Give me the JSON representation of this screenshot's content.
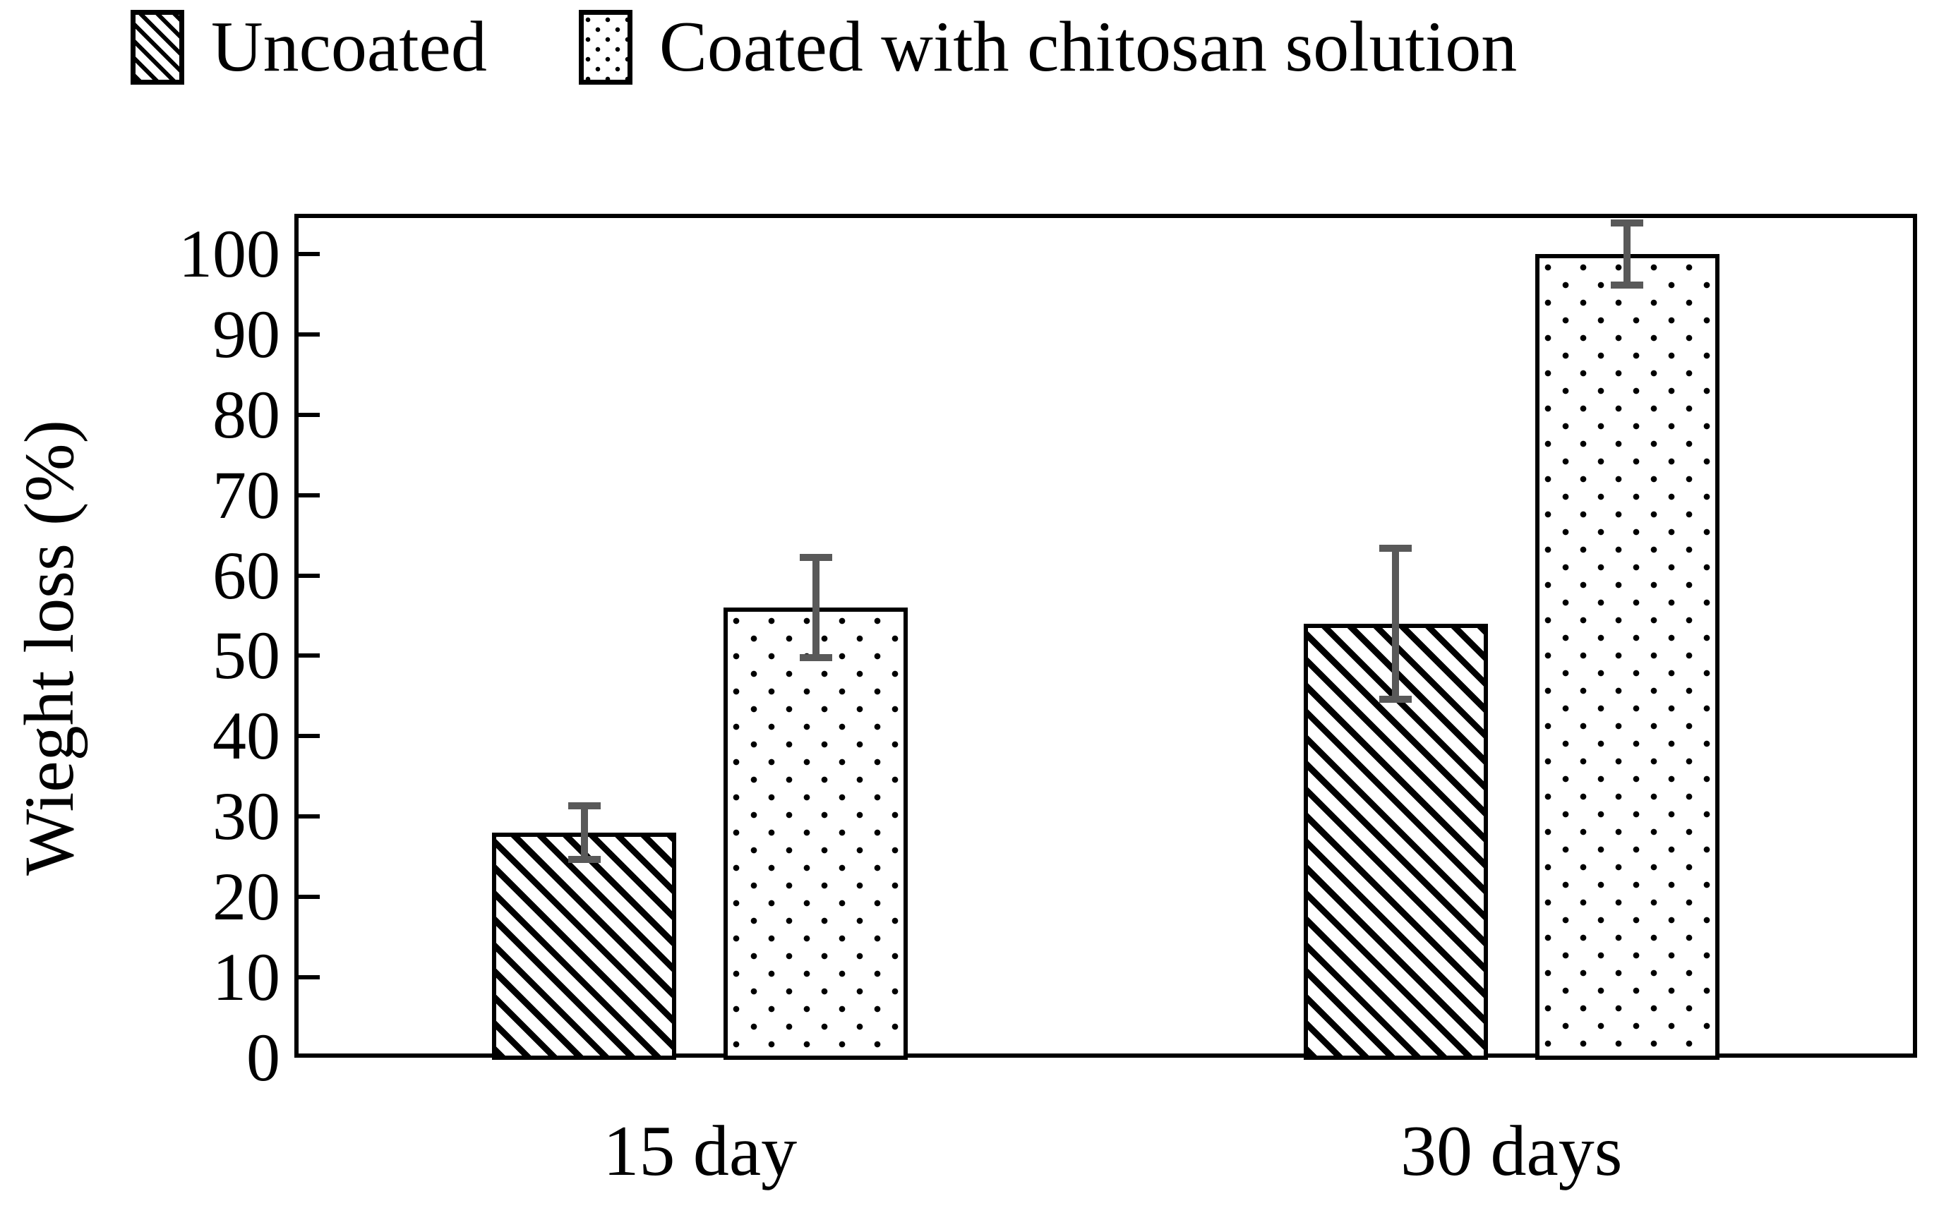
{
  "figure": {
    "background": "#ffffff",
    "text_color": "#000000"
  },
  "legend": {
    "position": "top",
    "items": [
      {
        "label": "Uncoated",
        "pattern": "diagonal-hatch",
        "swatch_icon": "hatched-square-icon"
      },
      {
        "label": "Coated with chitosan solution",
        "pattern": "dots",
        "swatch_icon": "dotted-square-icon"
      }
    ]
  },
  "chart_data": {
    "type": "bar",
    "title": "",
    "xlabel": "",
    "ylabel": "Wieght loss (%)",
    "categories": [
      "15 day",
      "30 days"
    ],
    "series": [
      {
        "name": "Uncoated",
        "pattern": "diagonal-hatch",
        "values": [
          28,
          54
        ],
        "errors": [
          3.8,
          9.8
        ]
      },
      {
        "name": "Coated with chitosan solution",
        "pattern": "dots",
        "values": [
          56,
          100
        ],
        "errors": [
          6.7,
          4.3
        ]
      }
    ],
    "ylim": [
      0,
      105
    ],
    "yticks": [
      0,
      10,
      20,
      30,
      40,
      50,
      60,
      70,
      80,
      90,
      100
    ],
    "grid": false,
    "legend_position": "top",
    "tick_direction": "inside",
    "bar_fill_color": "#ffffff",
    "bar_edge_color": "#000000",
    "error_bar_color": "#595959"
  }
}
